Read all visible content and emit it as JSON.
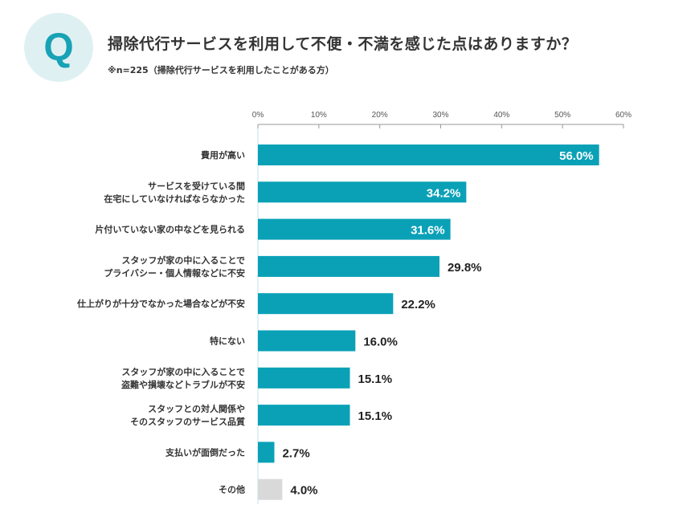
{
  "header": {
    "q_badge": "Q",
    "title": "掃除代行サービスを利用して不便・不満を感じた点はありますか？",
    "subtitle": "※n=225（掃除代行サービスを利用したことがある方）"
  },
  "chart_data": {
    "type": "bar",
    "orientation": "horizontal",
    "title": "掃除代行サービスを利用して不便・不満を感じた点はありますか？",
    "subtitle": "※n=225（掃除代行サービスを利用したことがある方）",
    "xlim": [
      0,
      60
    ],
    "ticks": [
      "0%",
      "10%",
      "20%",
      "30%",
      "40%",
      "50%",
      "60%"
    ],
    "tick_values": [
      0,
      10,
      20,
      30,
      40,
      50,
      60
    ],
    "grid": false,
    "categories": [
      [
        "費用が高い"
      ],
      [
        "サービスを受けている間",
        "在宅にしていなければならなかった"
      ],
      [
        "片付いていない家の中などを見られる"
      ],
      [
        "スタッフが家の中に入ることで",
        "プライバシー・個人情報などに不安"
      ],
      [
        "仕上がりが十分でなかった場合などが不安"
      ],
      [
        "特にない"
      ],
      [
        "スタッフが家の中に入ることで",
        "盗難や損壊などトラブルが不安"
      ],
      [
        "スタッフとの対人関係や",
        "そのスタッフのサービス品質"
      ],
      [
        "支払いが面倒だった"
      ],
      [
        "その他"
      ]
    ],
    "values": [
      56.0,
      34.2,
      31.6,
      29.8,
      22.2,
      16.0,
      15.1,
      15.1,
      2.7,
      4.0
    ],
    "labels": [
      "56.0%",
      "34.2%",
      "31.6%",
      "29.8%",
      "22.2%",
      "16.0%",
      "15.1%",
      "15.1%",
      "2.7%",
      "4.0%"
    ],
    "colors": {
      "bar": "#0aa1b7",
      "other": "#d9d9d9",
      "axis": "#999999"
    }
  }
}
